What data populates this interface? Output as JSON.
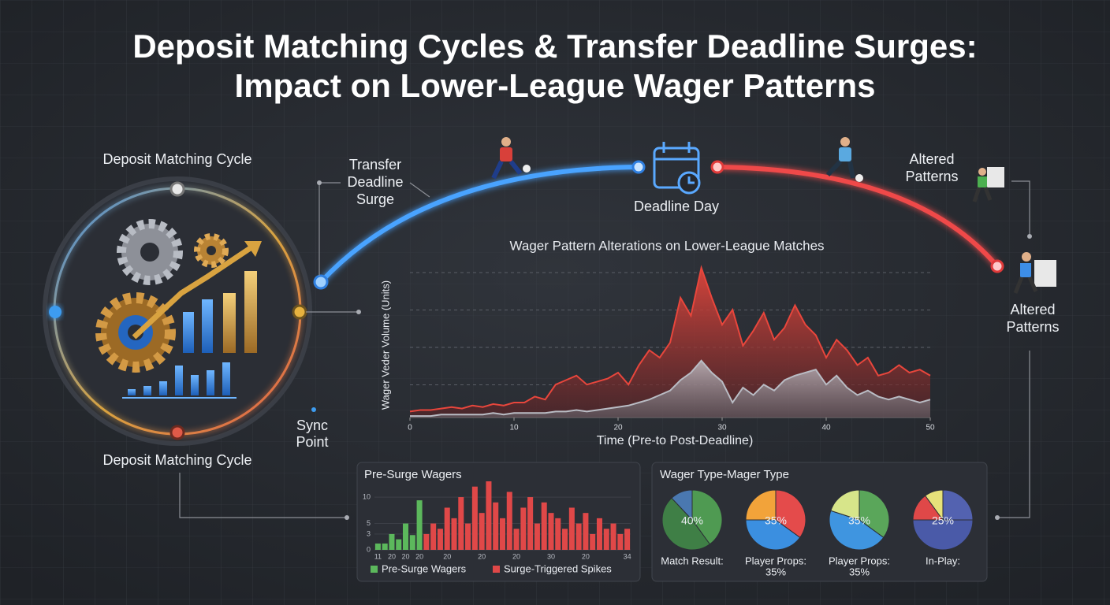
{
  "title_lines": [
    "Deposit Matching Cycles & Transfer Deadline Surges:",
    "Impact on Lower-League Wager Patterns"
  ],
  "diagram": {
    "cycle_label_top": "Deposit Matching Cycle",
    "cycle_label_bottom": "Deposit Matching Cycle",
    "sync_point": [
      "Sync",
      "Point"
    ],
    "transfer_surge": [
      "Transfer",
      "Deadline",
      "Surge"
    ],
    "deadline_day": "Deadline Day",
    "altered_patterns_top": [
      "Altered",
      "Patterns"
    ],
    "altered_patterns_right": [
      "Altered",
      "Patterns"
    ]
  },
  "chart_data": [
    {
      "type": "area",
      "title": "Wager Pattern Alterations on Lower-League Matches",
      "x_label": "Time (Pre-to Post-Deadline)",
      "y_label": "Wager Veder Volume (Units)",
      "x": [
        0,
        1,
        2,
        3,
        4,
        5,
        6,
        7,
        8,
        9,
        10,
        11,
        12,
        13,
        14,
        15,
        16,
        17,
        18,
        19,
        20,
        21,
        22,
        23,
        24,
        25,
        26,
        27,
        28,
        29,
        30,
        31,
        32,
        33,
        34,
        35,
        36,
        37,
        38,
        39,
        40,
        41,
        42,
        43,
        44,
        45,
        46,
        47,
        48,
        49,
        50
      ],
      "series": [
        {
          "color": "#e8463c",
          "values": [
            4,
            5,
            5,
            6,
            7,
            6,
            8,
            7,
            9,
            8,
            10,
            10,
            14,
            12,
            22,
            25,
            28,
            22,
            24,
            26,
            30,
            22,
            35,
            45,
            40,
            50,
            80,
            68,
            100,
            80,
            62,
            72,
            48,
            58,
            70,
            52,
            60,
            75,
            62,
            55,
            40,
            52,
            45,
            35,
            40,
            28,
            30,
            35,
            30,
            32,
            28
          ]
        },
        {
          "color": "#b9bcc4",
          "values": [
            1,
            1,
            1,
            2,
            2,
            2,
            2,
            2,
            3,
            2,
            3,
            3,
            3,
            3,
            4,
            4,
            5,
            4,
            5,
            6,
            7,
            8,
            10,
            12,
            15,
            18,
            25,
            30,
            38,
            30,
            24,
            10,
            20,
            15,
            22,
            18,
            25,
            28,
            30,
            32,
            22,
            28,
            20,
            15,
            18,
            14,
            12,
            14,
            12,
            10,
            12
          ]
        }
      ],
      "xlim": [
        0,
        50
      ],
      "xticks": [
        0,
        10,
        20,
        30,
        40,
        50
      ],
      "ylim": [
        0,
        100
      ],
      "grid": true
    },
    {
      "type": "bar",
      "title": "Pre-Surge Wagers",
      "categories": [
        "11",
        null,
        "20",
        null,
        "20",
        null,
        "20",
        null,
        null,
        null,
        "20",
        null,
        null,
        null,
        null,
        "20",
        null,
        null,
        null,
        null,
        "20",
        null,
        null,
        null,
        null,
        "30",
        null,
        null,
        null,
        null,
        "20",
        null,
        null,
        null,
        null,
        null,
        "34"
      ],
      "series": [
        {
          "name": "Pre-Surge Wagers",
          "color": "#5cb85c",
          "values": [
            1.2,
            1.2,
            3,
            2,
            5,
            2.8,
            9.4,
            null,
            null,
            null,
            null,
            null,
            null,
            null,
            null,
            null,
            null,
            null,
            null,
            null,
            null,
            null,
            null,
            null,
            null,
            null,
            null,
            null,
            null,
            null,
            null,
            null,
            null,
            null,
            null,
            null,
            null
          ]
        },
        {
          "name": "Surge-Triggered Spikes",
          "color": "#e04848",
          "values": [
            null,
            null,
            null,
            null,
            null,
            null,
            null,
            3,
            5,
            4,
            8,
            6,
            10,
            5,
            12,
            7,
            13,
            9,
            6,
            11,
            4,
            8,
            10,
            5,
            9,
            7,
            6,
            4,
            8,
            5,
            7,
            3,
            6,
            4,
            5,
            3,
            4
          ]
        }
      ],
      "ylim": [
        0,
        13
      ],
      "yticks": [
        0,
        3,
        5,
        10
      ],
      "legend": "bottom"
    },
    {
      "type": "pie",
      "title": "Wager Type-Mager Type",
      "pies": [
        {
          "values": [
            40,
            48,
            12
          ],
          "value_labels": [
            "40%",
            null,
            null
          ],
          "colors": [
            "#4f9a52",
            "#3f7f46",
            "#4a78b0"
          ],
          "caption": [
            "Match Result:"
          ]
        },
        {
          "values": [
            35,
            40,
            25
          ],
          "value_labels": [
            "35%",
            null,
            null
          ],
          "colors": [
            "#e44b4b",
            "#3b8fe0",
            "#f2a33a"
          ],
          "caption": [
            "Player Props:",
            "35%"
          ]
        },
        {
          "values": [
            35,
            45,
            20
          ],
          "value_labels": [
            "35%",
            null,
            null
          ],
          "colors": [
            "#5aa65a",
            "#3f95e0",
            "#d7e58a"
          ],
          "caption": [
            "Player Props:",
            "35%"
          ]
        },
        {
          "values": [
            25,
            50,
            15,
            10
          ],
          "value_labels": [
            "25%",
            null,
            null,
            null
          ],
          "colors": [
            "#5362b0",
            "#4a5aa8",
            "#e04848",
            "#e6e27a"
          ],
          "caption": [
            "In-Play:"
          ]
        }
      ]
    }
  ]
}
